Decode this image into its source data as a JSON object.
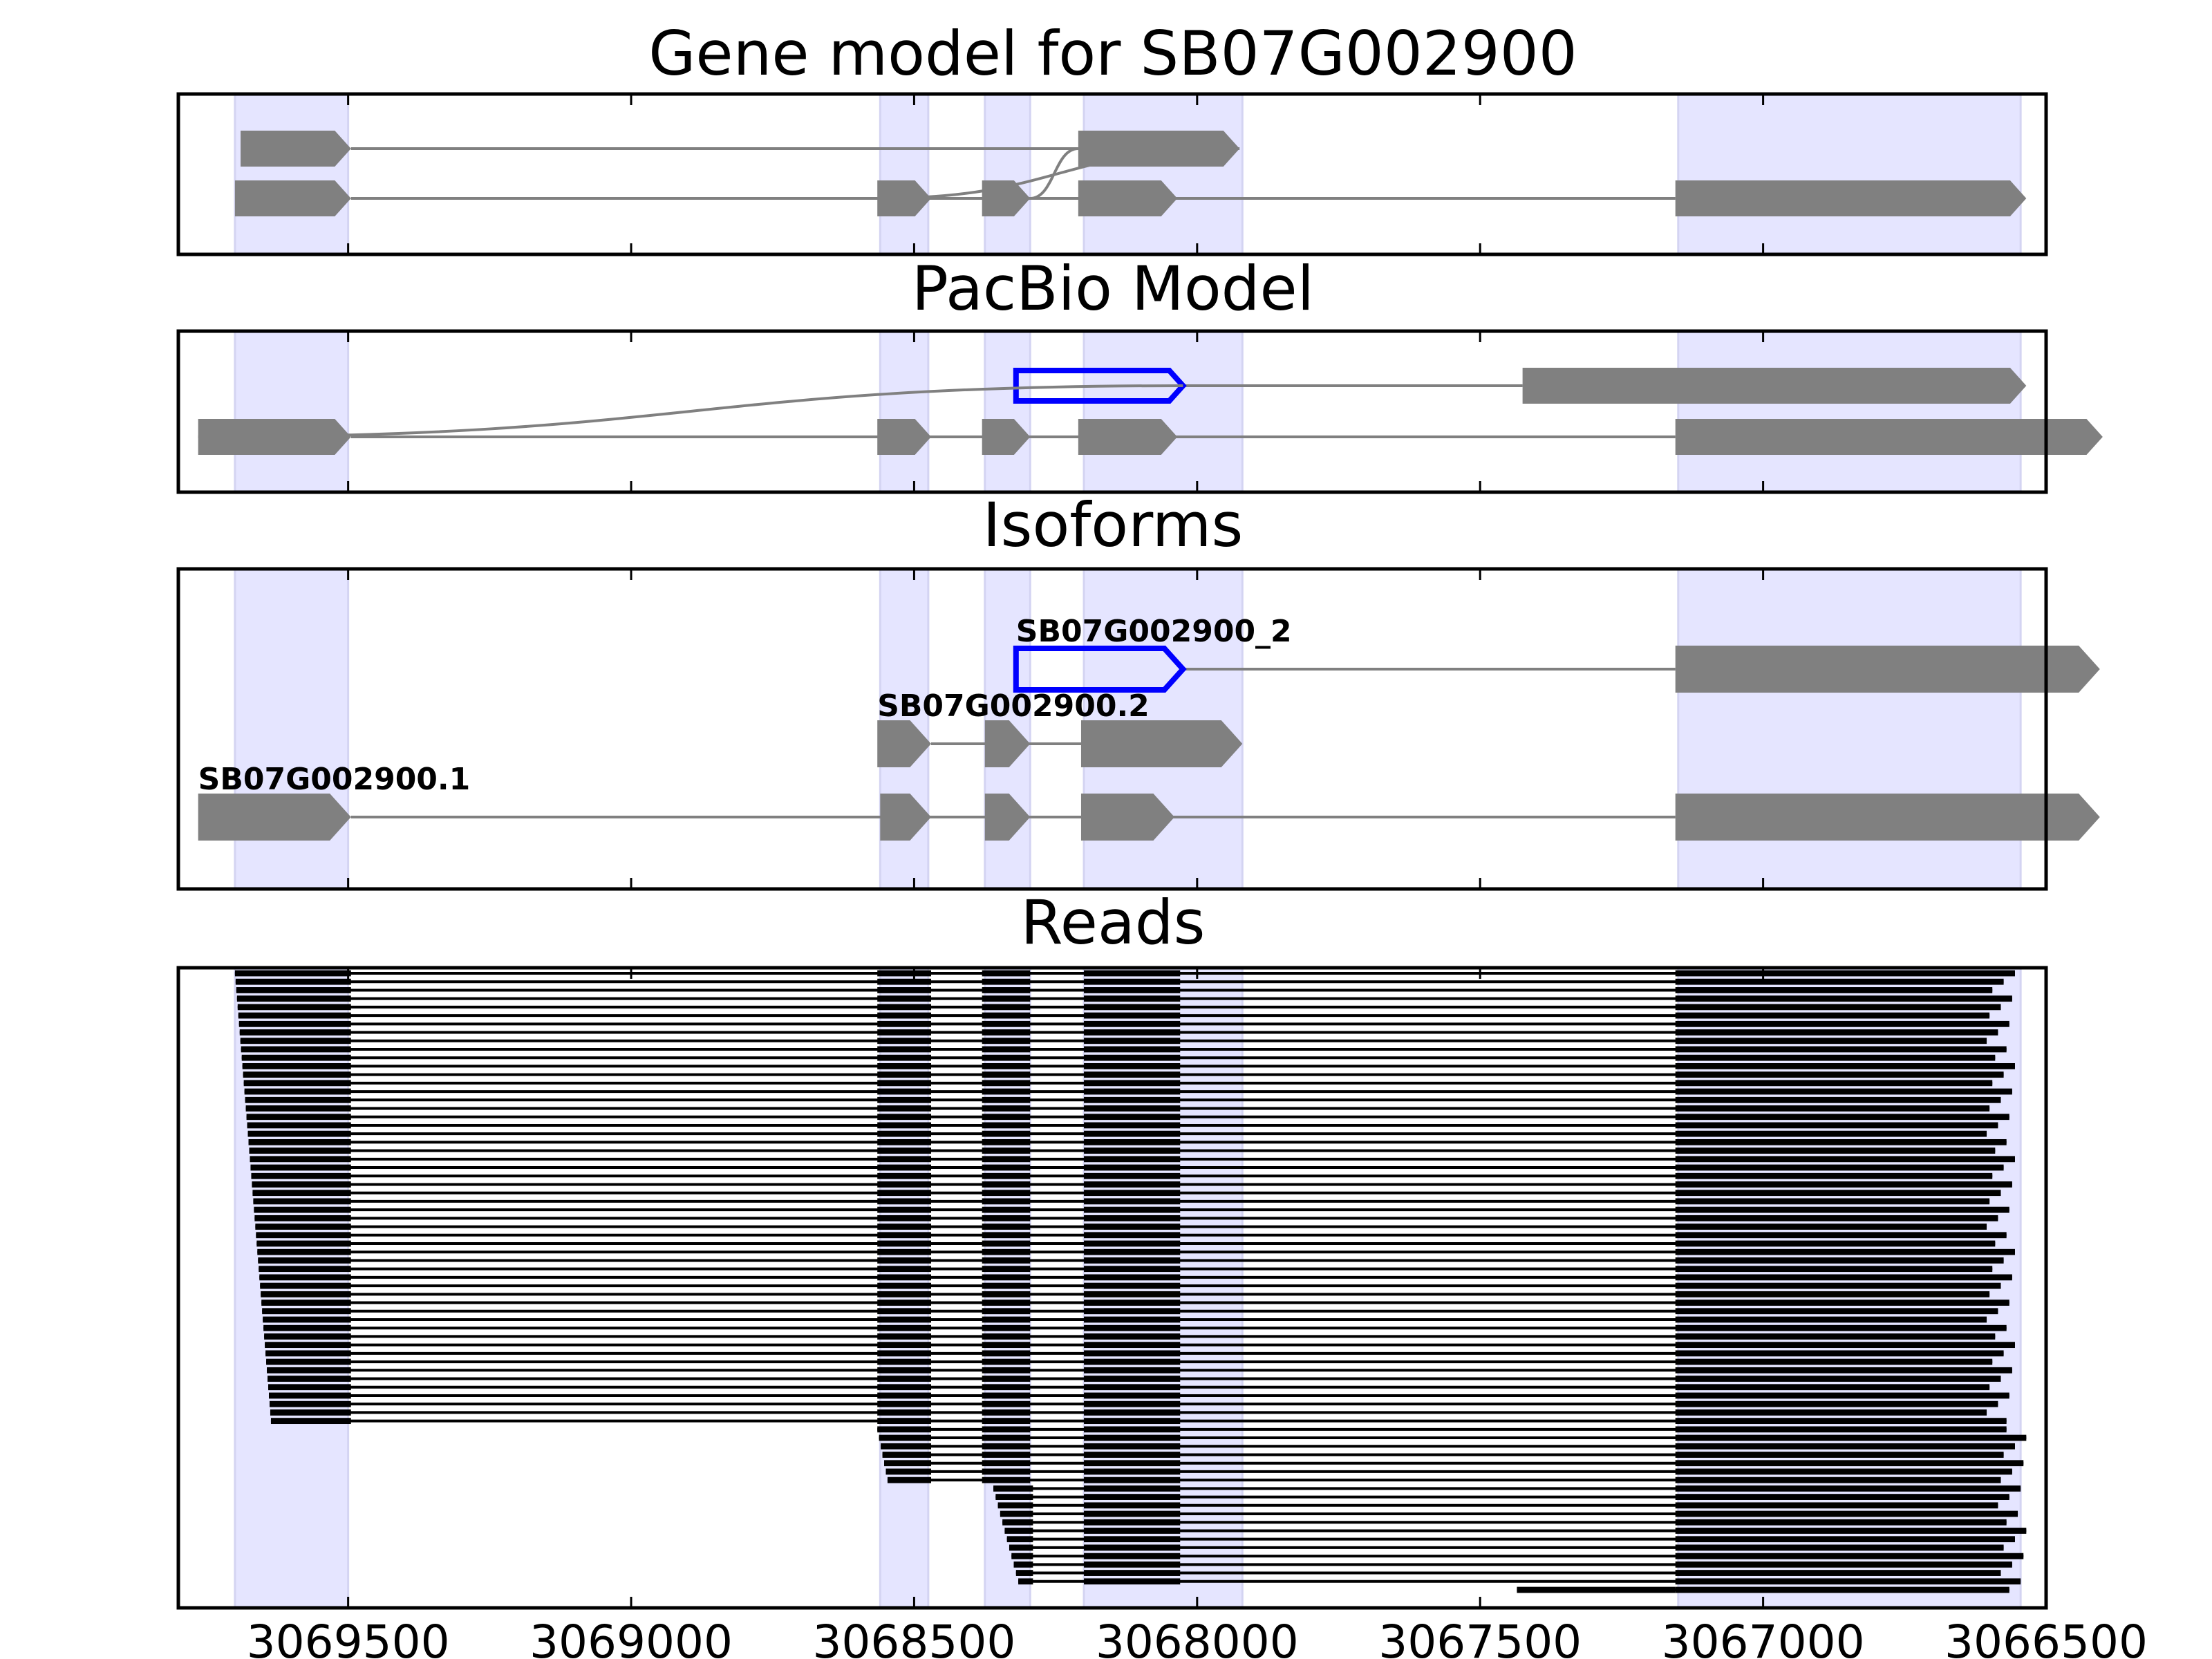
{
  "chart_data": {
    "type": "gene-track",
    "x_axis": {
      "range": [
        3069800,
        3066500
      ],
      "ticks": [
        3069500,
        3069000,
        3068500,
        3068000,
        3067500,
        3067000,
        3066500
      ],
      "tick_labels": [
        "3069500",
        "3069000",
        "3068500",
        "3068000",
        "3067500",
        "3067000",
        "3066500"
      ]
    },
    "colors": {
      "exon_fill": "#808080",
      "intron_line": "#808080",
      "highlight_outline": "#0000ff",
      "shade": "#e5e5ff",
      "read": "#000000",
      "frame": "#000000"
    },
    "shaded_regions": [
      [
        3069700,
        3069500
      ],
      [
        3068560,
        3068475
      ],
      [
        3068375,
        3068295
      ],
      [
        3068200,
        3067920
      ],
      [
        3067150,
        3066545
      ]
    ],
    "panels": [
      {
        "title": "Gene model for SB07G002900",
        "rows": [
          {
            "exons": [
              [
                3069690,
                3069495
              ],
              [
                3068210,
                3067925
              ]
            ],
            "highlight": [],
            "label": "",
            "bezier": [
              1,
              1
            ]
          },
          {
            "exons": [
              [
                3069700,
                3069495
              ],
              [
                3068565,
                3068470
              ],
              [
                3068380,
                3068295
              ],
              [
                3068210,
                3068035
              ],
              [
                3067155,
                3066535
              ]
            ],
            "highlight": [],
            "label": ""
          }
        ]
      },
      {
        "title": "PacBio Model",
        "rows": [
          {
            "exons": [
              [
                3067425,
                3066535
              ]
            ],
            "highlight": [
              [
                3068320,
                3068025
              ]
            ],
            "label": "",
            "bezier": [
              0,
              0
            ]
          },
          {
            "exons": [
              [
                3069765,
                3069495
              ],
              [
                3068565,
                3068470
              ],
              [
                3068380,
                3068295
              ],
              [
                3068210,
                3068035
              ],
              [
                3067155,
                3066400
              ]
            ],
            "highlight": [],
            "label": ""
          }
        ]
      },
      {
        "title": "Isoforms",
        "rows": [
          {
            "exons": [
              [
                3067155,
                3066405
              ]
            ],
            "highlight": [
              [
                3068320,
                3068025
              ]
            ],
            "label": "SB07G002900_2"
          },
          {
            "exons": [
              [
                3068565,
                3068470
              ],
              [
                3068375,
                3068295
              ],
              [
                3068205,
                3067920
              ]
            ],
            "highlight": [],
            "label": "SB07G002900.2"
          },
          {
            "exons": [
              [
                3069765,
                3069495
              ],
              [
                3068560,
                3068470
              ],
              [
                3068375,
                3068295
              ],
              [
                3068205,
                3068040
              ],
              [
                3067155,
                3066405
              ]
            ],
            "highlight": [],
            "label": "SB07G002900.1"
          }
        ]
      },
      {
        "title": "Reads",
        "read_count": 74,
        "read_groups": [
          {
            "count": 54,
            "exons": [
              [
                3069700,
                3069495
              ],
              [
                3068565,
                3068470
              ],
              [
                3068380,
                3068295
              ],
              [
                3068200,
                3068030
              ],
              [
                3067155,
                3066580
              ]
            ]
          },
          {
            "count": 7,
            "exons": [
              [
                3068565,
                3068470
              ],
              [
                3068380,
                3068295
              ],
              [
                3068200,
                3068030
              ],
              [
                3067155,
                3066560
              ]
            ]
          },
          {
            "count": 12,
            "exons": [
              [
                3068360,
                3068290
              ],
              [
                3068200,
                3068030
              ],
              [
                3067155,
                3066560
              ]
            ]
          },
          {
            "count": 1,
            "exons": [
              [
                3067435,
                3067155
              ],
              [
                3067155,
                3066560
              ]
            ]
          }
        ]
      }
    ]
  }
}
